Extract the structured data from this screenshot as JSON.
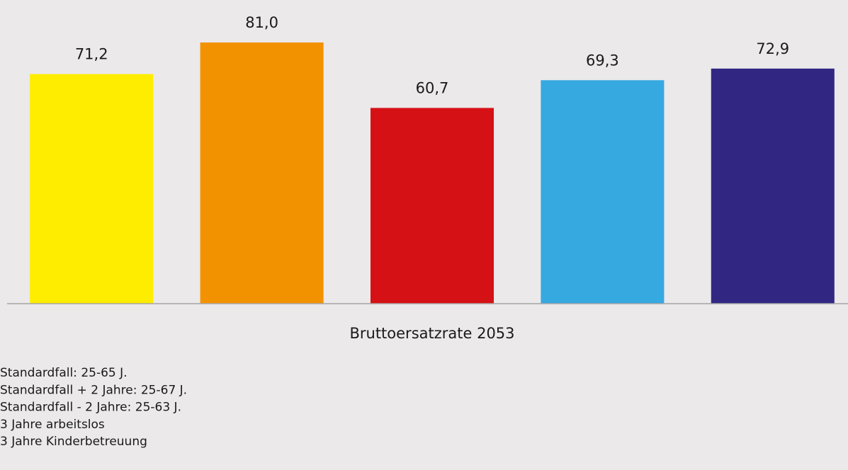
{
  "chart_data": {
    "type": "bar",
    "categories": [
      "Bruttoersatzrate 2053"
    ],
    "series": [
      {
        "name": "Standardfall: 25-65 J.",
        "color": "#ffed00",
        "values": [
          71.2
        ],
        "value_labels": [
          "71,2"
        ]
      },
      {
        "name": "Standardfall + 2 Jahre: 25-67 J.",
        "color": "#f39200",
        "values": [
          81.0
        ],
        "value_labels": [
          "81,0"
        ]
      },
      {
        "name": "Standardfall - 2 Jahre: 25-63 J.",
        "color": "#d51116",
        "values": [
          60.7
        ],
        "value_labels": [
          "60,7"
        ]
      },
      {
        "name": "3 Jahre arbeitslos",
        "color": "#36a9e1",
        "values": [
          69.3
        ],
        "value_labels": [
          "69,3"
        ]
      },
      {
        "name": "3 Jahre Kinderbetreuung",
        "color": "#312783",
        "values": [
          72.9
        ],
        "value_labels": [
          "72,9"
        ]
      }
    ],
    "ylim": [
      0,
      90
    ],
    "legend": "bottom-left"
  }
}
